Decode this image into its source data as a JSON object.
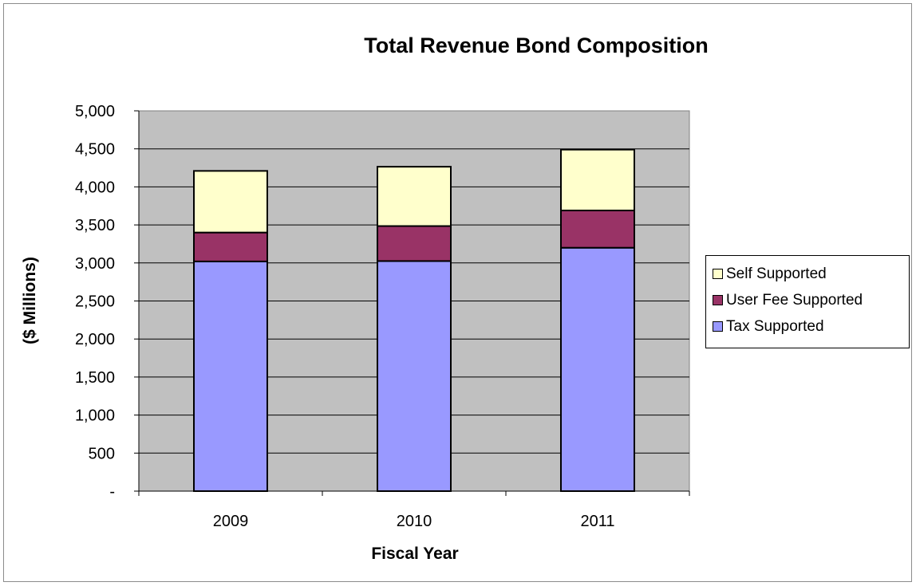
{
  "chart_data": {
    "type": "bar",
    "stacked": true,
    "title": "Total Revenue Bond Composition",
    "xlabel": "Fiscal Year",
    "ylabel": "($ Millions)",
    "categories": [
      "2009",
      "2010",
      "2011"
    ],
    "ylim": [
      0,
      5000
    ],
    "yticks": [
      0,
      500,
      1000,
      1500,
      2000,
      2500,
      3000,
      3500,
      4000,
      4500,
      5000
    ],
    "ytick_labels": [
      "-",
      "500",
      "1,000",
      "1,500",
      "2,000",
      "2,500",
      "3,000",
      "3,500",
      "4,000",
      "4,500",
      "5,000"
    ],
    "grid": true,
    "legend_position": "right",
    "series": [
      {
        "name": "Tax Supported",
        "values": [
          3020,
          3025,
          3200
        ],
        "color": "#9999ff"
      },
      {
        "name": "User Fee Supported",
        "values": [
          380,
          460,
          490
        ],
        "color": "#993366"
      },
      {
        "name": "Self Supported",
        "values": [
          810,
          780,
          800
        ],
        "color": "#ffffcc"
      }
    ],
    "legend_order": [
      "Self Supported",
      "User Fee Supported",
      "Tax Supported"
    ],
    "plot_background": "#c0c0c0"
  }
}
